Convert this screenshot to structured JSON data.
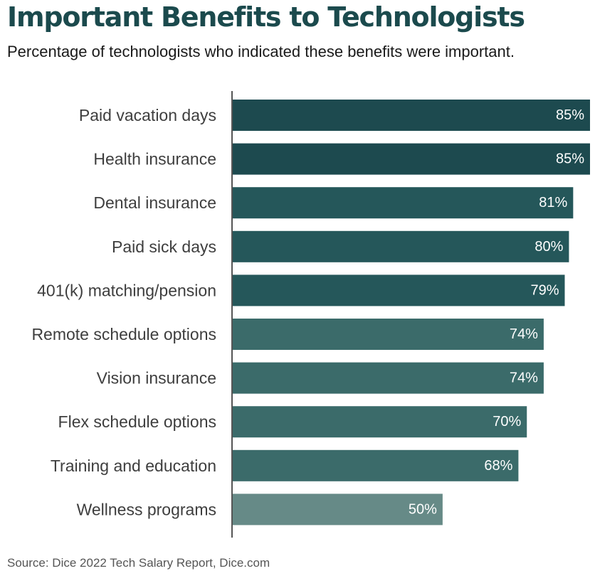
{
  "title": "Important Benefits to Technologists",
  "subtitle": "Percentage of technologists who indicated these benefits were important.",
  "source": "Source: Dice 2022 Tech Salary Report, Dice.com",
  "colors": {
    "title": "#1b4a4d",
    "axis": "#555555",
    "bar_tiers": [
      "#1d4a4f",
      "#25575a",
      "#3b6b6a",
      "#668a87"
    ]
  },
  "chart_data": {
    "type": "bar",
    "orientation": "horizontal",
    "categories": [
      "Paid vacation days",
      "Health insurance",
      "Dental insurance",
      "Paid sick days",
      "401(k) matching/pension",
      "Remote schedule options",
      "Vision insurance",
      "Flex schedule options",
      "Training and education",
      "Wellness programs"
    ],
    "values": [
      85,
      85,
      81,
      80,
      79,
      74,
      74,
      70,
      68,
      50
    ],
    "value_labels": [
      "85%",
      "85%",
      "81%",
      "80%",
      "79%",
      "74%",
      "74%",
      "70%",
      "68%",
      "50%"
    ],
    "unit": "%",
    "xlim": [
      0,
      85
    ],
    "grid": false,
    "legend": "none",
    "title": "Important Benefits to Technologists",
    "xlabel": "",
    "ylabel": ""
  }
}
